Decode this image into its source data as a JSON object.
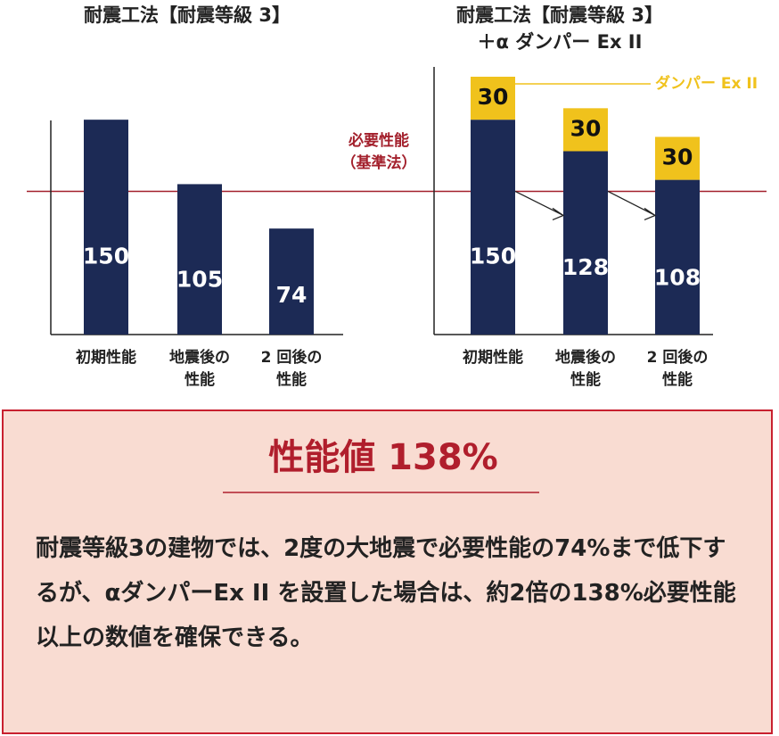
{
  "chart_data": [
    {
      "type": "bar",
      "title": "耐震工法【耐震等級 3】",
      "categories": [
        "初期性能",
        "地震後の\n性能",
        "2 回後の\n性能"
      ],
      "values": [
        150,
        105,
        74
      ],
      "color": "#1c2a55"
    },
    {
      "type": "stacked-bar",
      "title": "耐震工法【耐震等級 3】\n＋α ダンパー Ex II",
      "categories": [
        "初期性能",
        "地震後の\n性能",
        "2 回後の\n性能"
      ],
      "series": [
        {
          "color": "#1c2a55",
          "values": [
            150,
            128,
            108
          ]
        },
        {
          "name": "ダンパー Ex II",
          "color": "#f0c21c",
          "values": [
            30,
            30,
            30
          ]
        }
      ]
    }
  ],
  "reference": {
    "value": 100,
    "label": "必要性能",
    "sublabel": "（基準法）",
    "color": "#a3202c"
  },
  "summary": {
    "title": "性能値 138%",
    "text": "耐震等級3の建物では、2度の大地震で必要性能の74%まで低下するが、αダンパーEx II を設置した場合は、約2倍の138%必要性能以上の数値を確保できる。"
  }
}
